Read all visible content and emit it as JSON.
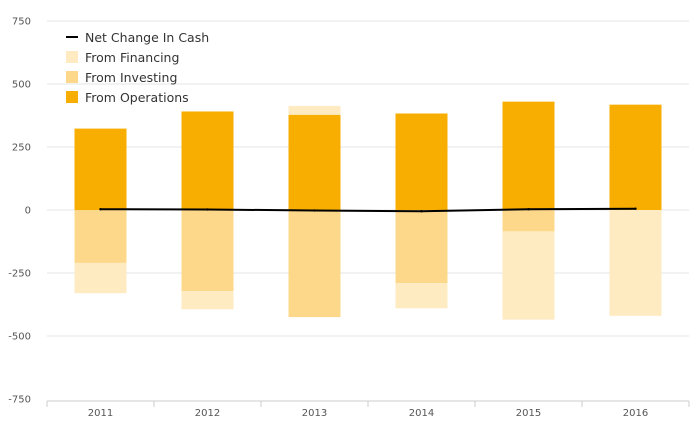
{
  "chart_data": {
    "type": "bar",
    "stacked": true,
    "categories": [
      "2011",
      "2012",
      "2013",
      "2014",
      "2015",
      "2016"
    ],
    "series": [
      {
        "name": "From Operations",
        "kind": "bar",
        "color": "#f7ae00",
        "values": [
          323,
          391,
          378,
          383,
          430,
          418
        ]
      },
      {
        "name": "From Investing",
        "kind": "bar",
        "color": "#fdd88a",
        "values": [
          -210,
          -322,
          -425,
          -290,
          -85,
          0
        ]
      },
      {
        "name": "From Financing",
        "kind": "bar",
        "color": "#feebc2",
        "values": [
          -120,
          -72,
          35,
          -100,
          -350,
          -420
        ]
      },
      {
        "name": "Net Change In Cash",
        "kind": "line",
        "color": "#000000",
        "values": [
          3,
          2,
          -2,
          -5,
          3,
          5
        ]
      }
    ],
    "y_ticks": [
      "750",
      "500",
      "250",
      "0",
      "-250",
      "-500",
      "-750"
    ],
    "ylim": [
      -750,
      750
    ],
    "grid": true,
    "legend_position": "top-left"
  },
  "legend": [
    {
      "label": "Net Change In Cash",
      "type": "line",
      "color": "#000000"
    },
    {
      "label": "From Financing",
      "type": "swatch",
      "color": "#feebc2"
    },
    {
      "label": "From Investing",
      "type": "swatch",
      "color": "#fdd88a"
    },
    {
      "label": "From Operations",
      "type": "swatch",
      "color": "#f7ae00"
    }
  ]
}
